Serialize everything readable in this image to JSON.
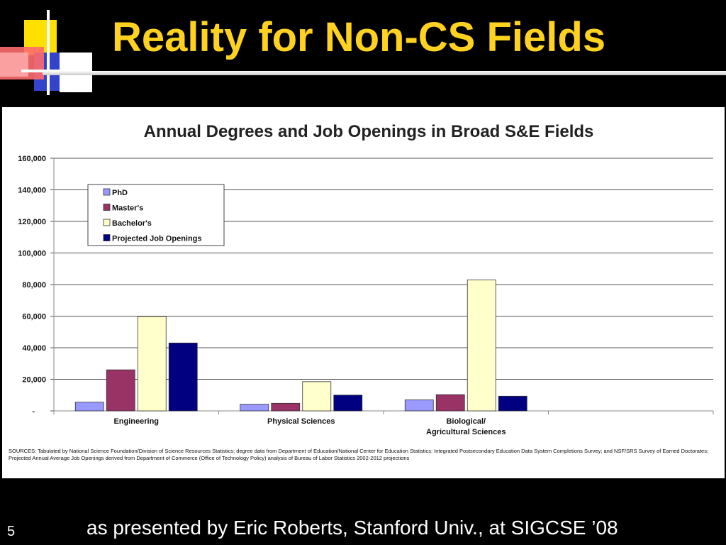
{
  "slide": {
    "title": "Reality for Non-CS Fields",
    "number": "5",
    "footer": "as presented by Eric Roberts, Stanford Univ., at SIGCSE ’08"
  },
  "chart_data": {
    "type": "bar",
    "title": "Annual Degrees and Job Openings in Broad S&E Fields",
    "categories": [
      "Engineering",
      "Physical Sciences",
      "Biological/\nAgricultural Sciences",
      ""
    ],
    "series": [
      {
        "name": "PhD",
        "color": "#9999ff",
        "values": [
          5500,
          4200,
          7000,
          null
        ]
      },
      {
        "name": "Master's",
        "color": "#993366",
        "values": [
          26000,
          4800,
          10300,
          null
        ]
      },
      {
        "name": "Bachelor's",
        "color": "#ffffcc",
        "values": [
          59800,
          18500,
          83000,
          null
        ]
      },
      {
        "name": "Projected Job Openings",
        "color": "#000080",
        "values": [
          43000,
          10000,
          9300,
          null
        ]
      }
    ],
    "yticks": [
      "-",
      "20,000",
      "40,000",
      "60,000",
      "80,000",
      "100,000",
      "120,000",
      "140,000",
      "160,000"
    ],
    "ylim": [
      0,
      160000
    ],
    "grid": true,
    "legend": "top-left",
    "xlabel": "",
    "ylabel": ""
  },
  "sources_text": "SOURCES:    Tabulated by National Science Foundation/Division of Science Resources Statistics; degree data from Department of Education/National Center for Education Statistics:  Integrated Postsecondary Education Data System Completions Survey; and NSF/SRS Survey of Earned Doctorates; Projected Annual Average Job Openings derived from Department of Commerce (Office of Technology Policy) analysis of Bureau of Labor Statistics 2002-2012 projections"
}
